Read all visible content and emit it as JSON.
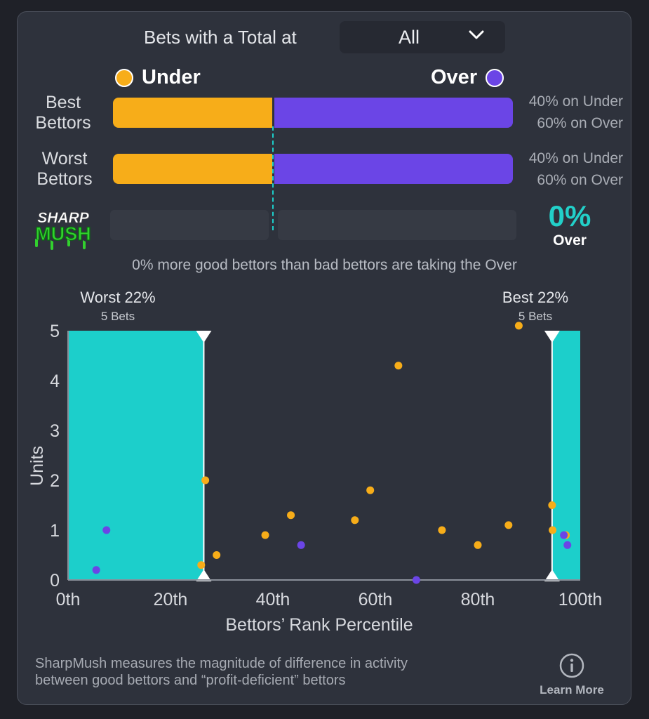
{
  "header": {
    "filter_label": "Bets with a Total at",
    "filter_value": "All"
  },
  "legend": {
    "under_label": "Under",
    "over_label": "Over",
    "under_color": "#f7ad19",
    "over_color": "#6b45e6"
  },
  "rows": [
    {
      "label_line1": "Best",
      "label_line2": "Bettors",
      "under_pct": 40,
      "over_pct": 60,
      "under_text": "40% on Under",
      "over_text": "60% on Over"
    },
    {
      "label_line1": "Worst",
      "label_line2": "Bettors",
      "under_pct": 40,
      "over_pct": 60,
      "under_text": "40% on Under",
      "over_text": "60% on Over"
    }
  ],
  "sharpmush": {
    "logo_line1": "SHARP",
    "logo_line2": "MUSH",
    "percent": "0%",
    "direction": "Over",
    "summary": "0% more good bettors than bad bettors are taking the Over"
  },
  "footer": {
    "text_line1": "SharpMush measures the magnitude of difference in activity",
    "text_line2": "between good bettors and “profit-deficient” bettors",
    "learn_more": "Learn More"
  },
  "chart_data": {
    "type": "scatter",
    "xlabel": "Bettors’ Rank Percentile",
    "ylabel": "Units",
    "xlim": [
      0,
      100
    ],
    "ylim": [
      0,
      5
    ],
    "xticks": [
      "0th",
      "20th",
      "40th",
      "60th",
      "80th",
      "100th"
    ],
    "yticks": [
      "0",
      "1",
      "2",
      "3",
      "4",
      "5"
    ],
    "accent_color": "#1ccfcb",
    "worst_region": {
      "label": "Worst 22%",
      "sublabel": "5 Bets",
      "from": 0,
      "to": 26.5
    },
    "best_region": {
      "label": "Best 22%",
      "sublabel": "5 Bets",
      "from": 94.5,
      "to": 100
    },
    "series": [
      {
        "side": "under",
        "color": "#f7ad19",
        "points": [
          [
            26,
            0.3
          ],
          [
            26.8,
            2.0
          ],
          [
            29,
            0.5
          ],
          [
            38.5,
            0.9
          ],
          [
            43.5,
            1.3
          ],
          [
            56,
            1.2
          ],
          [
            59,
            1.8
          ],
          [
            64.5,
            4.3
          ],
          [
            73,
            1.0
          ],
          [
            80,
            0.7
          ],
          [
            86,
            1.1
          ],
          [
            88,
            5.1
          ],
          [
            94.5,
            1.5
          ],
          [
            94.6,
            1.0
          ],
          [
            97.2,
            0.9
          ]
        ]
      },
      {
        "side": "over",
        "color": "#6b45e6",
        "points": [
          [
            5.5,
            0.2
          ],
          [
            7.5,
            1.0
          ],
          [
            45.5,
            0.7
          ],
          [
            68,
            0.0
          ],
          [
            96.8,
            0.9
          ],
          [
            97.5,
            0.7
          ]
        ]
      }
    ]
  }
}
